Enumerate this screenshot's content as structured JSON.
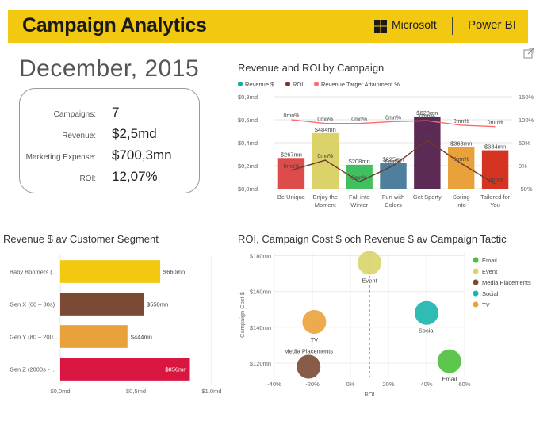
{
  "header": {
    "title": "Campaign Analytics",
    "microsoft": "Microsoft",
    "powerbi": "Power BI"
  },
  "date_label": "December, 2015",
  "kpis": [
    {
      "label": "Campaigns:",
      "value": "7"
    },
    {
      "label": "Revenue:",
      "value": "$2,5md"
    },
    {
      "label": "Marketing Expense:",
      "value": "$700,3mn"
    },
    {
      "label": "ROI:",
      "value": "12,07%"
    }
  ],
  "colors": {
    "banner": "#f2c811",
    "revenue": "#00b3a4",
    "roi": "#6e3b2a",
    "target": "#ff6b6b",
    "email": "#4cc03c",
    "event": "#d9d46a",
    "media": "#7a4a34",
    "social": "#1ab5ad",
    "tv": "#e9a23b"
  },
  "icons": {
    "expand": "expand-icon",
    "microsoft": "microsoft-logo-icon"
  },
  "chart_data": [
    {
      "type": "bar",
      "title": "Revenue and ROI by Campaign",
      "legend": [
        "Revenue $",
        "ROI",
        "Revenue Target Attainment %"
      ],
      "legend_position": "top-left",
      "categories": [
        "Be Unique",
        "Enjoy the Moment",
        "Fall into Winter",
        "Fun with Colors",
        "Get Sporty",
        "Spring into",
        "Tailored for You"
      ],
      "series": [
        {
          "name": "Revenue $",
          "values": [
            267,
            484,
            208,
            225,
            628,
            363,
            334
          ],
          "labels": [
            "$267mn",
            "$484mn",
            "$208mn",
            "$225mn",
            "$628mn",
            "$363mn",
            "$334mn"
          ],
          "colors": [
            "#dd4b4b",
            "#dcd26a",
            "#40c060",
            "#4f7f9f",
            "#5b2a55",
            "#e9a23b",
            "#d63422"
          ]
        },
        {
          "name": "ROI",
          "values": [
            -10,
            12,
            -35,
            0,
            55,
            5,
            -40
          ]
        },
        {
          "name": "Revenue Target Attainment %",
          "values": [
            100,
            92,
            92,
            96,
            98,
            88,
            85
          ]
        }
      ],
      "point_labels": [
        "0mn%",
        "0mn%",
        "0mn%",
        "0mn%",
        "0mn%",
        "0mn%",
        "0mn%",
        "0mn%",
        "0mn%",
        "0mn%",
        "0mn%",
        "0mn%",
        "0mn%",
        "0mn%"
      ],
      "y_ticks": [
        "$0,0md",
        "$0,2md",
        "$0,4md",
        "$0,6md",
        "$0,8md"
      ],
      "y2_ticks": [
        "-50%",
        "0%",
        "50%",
        "100%",
        "150%"
      ],
      "ylim": [
        0,
        800
      ],
      "y2lim": [
        -50,
        150
      ],
      "grid": true
    },
    {
      "type": "bar",
      "orientation": "horizontal",
      "title": "Revenue $ av Customer Segment",
      "categories": [
        "Baby Boomers (...",
        "Gen X (60 – 80s)",
        "Gen Y (80 – 200...",
        "Gen Z (2000s - ..."
      ],
      "values": [
        660,
        550,
        444,
        856
      ],
      "labels": [
        "$660mn",
        "$550mn",
        "$444mn",
        "$856mn"
      ],
      "colors": [
        "#f2c811",
        "#7a4a34",
        "#e9a23b",
        "#d9163f"
      ],
      "x_ticks": [
        "$0,0md",
        "$0,5md",
        "$1,0md"
      ],
      "xlim": [
        0,
        1000
      ],
      "grid": true
    },
    {
      "type": "scatter",
      "title": "ROI, Campaign Cost $ och Revenue $ av Campaign Tactic",
      "xlabel": "ROI",
      "ylabel": "Campaign Cost $",
      "x_ticks": [
        "-40%",
        "-20%",
        "0%",
        "20%",
        "40%",
        "60%"
      ],
      "y_ticks": [
        "$120mn",
        "$140mn",
        "$160mn",
        "$180mn"
      ],
      "xlim": [
        -40,
        60
      ],
      "ylim": [
        112,
        182
      ],
      "reference_line_x": 10,
      "legend_position": "right",
      "points": [
        {
          "name": "Email",
          "x": 52,
          "y": 121,
          "label": "Email",
          "color": "#4cc03c"
        },
        {
          "name": "Event",
          "x": 10,
          "y": 176,
          "label": "Event",
          "color": "#d9d46a"
        },
        {
          "name": "Media Placements",
          "x": -22,
          "y": 118,
          "label": "Media Placements",
          "color": "#7a4a34"
        },
        {
          "name": "Social",
          "x": 40,
          "y": 148,
          "label": "Social",
          "color": "#1ab5ad"
        },
        {
          "name": "TV",
          "x": -19,
          "y": 143,
          "label": "TV",
          "color": "#e9a23b"
        }
      ],
      "legend": [
        "Email",
        "Event",
        "Media Placements",
        "Social",
        "TV"
      ]
    }
  ]
}
